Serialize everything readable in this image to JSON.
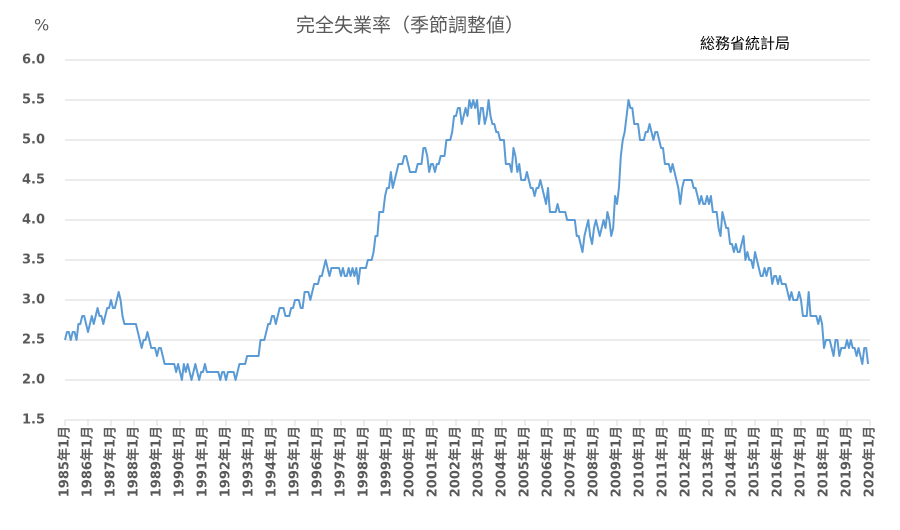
{
  "chart_data": {
    "type": "line",
    "title": "完全失業率（季節調整値）",
    "y_label": "%",
    "source": "総務省統計局",
    "categories": [
      "1985年1月",
      null,
      null,
      null,
      null,
      null,
      null,
      null,
      null,
      null,
      null,
      null,
      "1986年1月",
      null,
      null,
      null,
      null,
      null,
      null,
      null,
      null,
      null,
      null,
      null,
      "1987年1月",
      null,
      null,
      null,
      null,
      null,
      null,
      null,
      null,
      null,
      null,
      null,
      "1988年1月",
      null,
      null,
      null,
      null,
      null,
      null,
      null,
      null,
      null,
      null,
      null,
      "1989年1月",
      null,
      null,
      null,
      null,
      null,
      null,
      null,
      null,
      null,
      null,
      null,
      "1990年1月",
      null,
      null,
      null,
      null,
      null,
      null,
      null,
      null,
      null,
      null,
      null,
      "1991年1月",
      null,
      null,
      null,
      null,
      null,
      null,
      null,
      null,
      null,
      null,
      null,
      "1992年1月",
      null,
      null,
      null,
      null,
      null,
      null,
      null,
      null,
      null,
      null,
      null,
      "1993年1月",
      null,
      null,
      null,
      null,
      null,
      null,
      null,
      null,
      null,
      null,
      null,
      "1994年1月",
      null,
      null,
      null,
      null,
      null,
      null,
      null,
      null,
      null,
      null,
      null,
      "1995年1月",
      null,
      null,
      null,
      null,
      null,
      null,
      null,
      null,
      null,
      null,
      null,
      "1996年1月",
      null,
      null,
      null,
      null,
      null,
      null,
      null,
      null,
      null,
      null,
      null,
      "1997年1月",
      null,
      null,
      null,
      null,
      null,
      null,
      null,
      null,
      null,
      null,
      null,
      "1998年1月",
      null,
      null,
      null,
      null,
      null,
      null,
      null,
      null,
      null,
      null,
      null,
      "1999年1月",
      null,
      null,
      null,
      null,
      null,
      null,
      null,
      null,
      null,
      null,
      null,
      "2000年1月",
      null,
      null,
      null,
      null,
      null,
      null,
      null,
      null,
      null,
      null,
      null,
      "2001年1月",
      null,
      null,
      null,
      null,
      null,
      null,
      null,
      null,
      null,
      null,
      null,
      "2002年1月",
      null,
      null,
      null,
      null,
      null,
      null,
      null,
      null,
      null,
      null,
      null,
      "2003年1月",
      null,
      null,
      null,
      null,
      null,
      null,
      null,
      null,
      null,
      null,
      null,
      "2004年1月",
      null,
      null,
      null,
      null,
      null,
      null,
      null,
      null,
      null,
      null,
      null,
      "2005年1月",
      null,
      null,
      null,
      null,
      null,
      null,
      null,
      null,
      null,
      null,
      null,
      "2006年1月",
      null,
      null,
      null,
      null,
      null,
      null,
      null,
      null,
      null,
      null,
      null,
      "2007年1月",
      null,
      null,
      null,
      null,
      null,
      null,
      null,
      null,
      null,
      null,
      null,
      "2008年1月",
      null,
      null,
      null,
      null,
      null,
      null,
      null,
      null,
      null,
      null,
      null,
      "2009年1月",
      null,
      null,
      null,
      null,
      null,
      null,
      null,
      null,
      null,
      null,
      null,
      "2010年1月",
      null,
      null,
      null,
      null,
      null,
      null,
      null,
      null,
      null,
      null,
      null,
      "2011年1月",
      null,
      null,
      null,
      null,
      null,
      null,
      null,
      null,
      null,
      null,
      null,
      "2012年1月",
      null,
      null,
      null,
      null,
      null,
      null,
      null,
      null,
      null,
      null,
      null,
      "2013年1月",
      null,
      null,
      null,
      null,
      null,
      null,
      null,
      null,
      null,
      null,
      null,
      "2014年1月",
      null,
      null,
      null,
      null,
      null,
      null,
      null,
      null,
      null,
      null,
      null,
      "2015年1月",
      null,
      null,
      null,
      null,
      null,
      null,
      null,
      null,
      null,
      null,
      null,
      "2016年1月",
      null,
      null,
      null,
      null,
      null,
      null,
      null,
      null,
      null,
      null,
      null,
      "2017年1月",
      null,
      null,
      null,
      null,
      null,
      null,
      null,
      null,
      null,
      null,
      null,
      "2018年1月",
      null,
      null,
      null,
      null,
      null,
      null,
      null,
      null,
      null,
      null,
      null,
      "2019年1月",
      null,
      null,
      null,
      null,
      null,
      null,
      null,
      null,
      null,
      null,
      null,
      "2020年1月"
    ],
    "values": [
      2.5,
      2.6,
      2.6,
      2.5,
      2.6,
      2.6,
      2.5,
      2.7,
      2.7,
      2.8,
      2.8,
      2.7,
      2.6,
      2.7,
      2.8,
      2.7,
      2.8,
      2.9,
      2.8,
      2.8,
      2.7,
      2.8,
      2.9,
      2.9,
      3.0,
      2.9,
      2.9,
      3.0,
      3.1,
      3.0,
      2.8,
      2.7,
      2.7,
      2.7,
      2.7,
      2.7,
      2.7,
      2.7,
      2.6,
      2.5,
      2.4,
      2.5,
      2.5,
      2.6,
      2.5,
      2.4,
      2.4,
      2.4,
      2.3,
      2.4,
      2.4,
      2.3,
      2.2,
      2.2,
      2.2,
      2.2,
      2.2,
      2.2,
      2.1,
      2.2,
      2.1,
      2.0,
      2.2,
      2.1,
      2.2,
      2.1,
      2.0,
      2.1,
      2.2,
      2.1,
      2.0,
      2.1,
      2.1,
      2.2,
      2.1,
      2.1,
      2.1,
      2.1,
      2.1,
      2.1,
      2.1,
      2.0,
      2.1,
      2.1,
      2.0,
      2.1,
      2.1,
      2.1,
      2.1,
      2.0,
      2.1,
      2.2,
      2.2,
      2.2,
      2.2,
      2.3,
      2.3,
      2.3,
      2.3,
      2.3,
      2.3,
      2.3,
      2.5,
      2.5,
      2.5,
      2.6,
      2.7,
      2.7,
      2.8,
      2.8,
      2.7,
      2.8,
      2.9,
      2.9,
      2.9,
      2.8,
      2.8,
      2.8,
      2.9,
      2.9,
      3.0,
      3.0,
      3.0,
      2.9,
      2.9,
      3.1,
      3.1,
      3.1,
      3.0,
      3.1,
      3.2,
      3.2,
      3.2,
      3.3,
      3.3,
      3.4,
      3.5,
      3.4,
      3.3,
      3.4,
      3.4,
      3.4,
      3.4,
      3.4,
      3.3,
      3.4,
      3.3,
      3.3,
      3.4,
      3.3,
      3.4,
      3.3,
      3.4,
      3.2,
      3.4,
      3.4,
      3.4,
      3.4,
      3.5,
      3.5,
      3.5,
      3.6,
      3.8,
      3.8,
      4.1,
      4.1,
      4.1,
      4.3,
      4.4,
      4.4,
      4.6,
      4.4,
      4.5,
      4.6,
      4.7,
      4.7,
      4.7,
      4.8,
      4.8,
      4.7,
      4.6,
      4.6,
      4.6,
      4.6,
      4.7,
      4.7,
      4.7,
      4.9,
      4.9,
      4.8,
      4.6,
      4.7,
      4.7,
      4.6,
      4.7,
      4.7,
      4.8,
      4.8,
      4.8,
      5.0,
      5.0,
      5.0,
      5.1,
      5.3,
      5.3,
      5.4,
      5.4,
      5.2,
      5.3,
      5.4,
      5.3,
      5.5,
      5.4,
      5.5,
      5.4,
      5.5,
      5.2,
      5.4,
      5.4,
      5.2,
      5.3,
      5.5,
      5.3,
      5.2,
      5.2,
      5.1,
      5.1,
      5.0,
      5.0,
      5.0,
      4.7,
      4.7,
      4.7,
      4.6,
      4.9,
      4.8,
      4.6,
      4.7,
      4.5,
      4.5,
      4.5,
      4.6,
      4.5,
      4.4,
      4.4,
      4.3,
      4.4,
      4.4,
      4.5,
      4.4,
      4.3,
      4.2,
      4.4,
      4.1,
      4.1,
      4.1,
      4.1,
      4.2,
      4.1,
      4.1,
      4.1,
      4.1,
      4.0,
      4.0,
      4.0,
      4.0,
      4.0,
      3.8,
      3.8,
      3.7,
      3.6,
      3.8,
      3.9,
      4.0,
      3.8,
      3.7,
      3.9,
      4.0,
      3.9,
      3.8,
      3.9,
      4.0,
      3.9,
      4.1,
      4.0,
      3.8,
      3.9,
      4.3,
      4.2,
      4.4,
      4.8,
      5.0,
      5.1,
      5.3,
      5.5,
      5.4,
      5.4,
      5.2,
      5.2,
      5.2,
      5.0,
      5.0,
      5.0,
      5.1,
      5.1,
      5.2,
      5.1,
      5.0,
      5.1,
      5.1,
      5.0,
      4.9,
      4.9,
      4.7,
      4.7,
      4.7,
      4.6,
      4.7,
      4.6,
      4.5,
      4.4,
      4.2,
      4.4,
      4.5,
      4.5,
      4.5,
      4.5,
      4.5,
      4.4,
      4.4,
      4.3,
      4.2,
      4.3,
      4.2,
      4.2,
      4.3,
      4.2,
      4.3,
      4.1,
      4.1,
      4.1,
      3.9,
      3.8,
      4.1,
      4.0,
      3.9,
      3.9,
      3.7,
      3.7,
      3.6,
      3.7,
      3.6,
      3.6,
      3.7,
      3.8,
      3.5,
      3.6,
      3.5,
      3.5,
      3.4,
      3.6,
      3.5,
      3.4,
      3.3,
      3.3,
      3.4,
      3.3,
      3.4,
      3.4,
      3.2,
      3.3,
      3.3,
      3.2,
      3.3,
      3.2,
      3.2,
      3.2,
      3.1,
      3.0,
      3.1,
      3.0,
      3.0,
      3.0,
      3.1,
      3.0,
      2.8,
      2.8,
      2.8,
      3.1,
      2.8,
      2.8,
      2.8,
      2.8,
      2.7,
      2.8,
      2.7,
      2.4,
      2.5,
      2.5,
      2.5,
      2.4,
      2.3,
      2.5,
      2.5,
      2.3,
      2.4,
      2.4,
      2.4,
      2.5,
      2.4,
      2.5,
      2.4,
      2.4,
      2.3,
      2.4,
      2.3,
      2.2,
      2.4,
      2.4,
      2.2,
      null
    ],
    "color": "#5b9bd5",
    "ylim": [
      1.5,
      6.0
    ],
    "yticks": [
      1.5,
      {
        "value": 2,
        "label": "2.0"
      },
      2.5,
      {
        "value": 3,
        "label": "3.0"
      },
      3.5,
      {
        "value": 4,
        "label": "4.0"
      },
      4.5,
      {
        "value": 5,
        "label": "5.0"
      },
      5.5,
      {
        "value": 6,
        "label": "6.0"
      }
    ],
    "grid": true
  }
}
